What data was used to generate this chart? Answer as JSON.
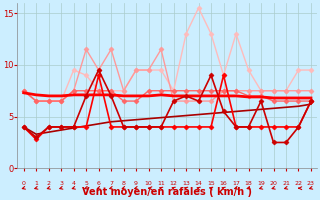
{
  "bg_color": "#cceeff",
  "grid_color": "#aacccc",
  "xlabel": "Vent moyen/en rafales ( km/h )",
  "xlabel_color": "#cc0000",
  "xlabel_fontsize": 7,
  "ytick_color": "#cc0000",
  "xtick_color": "#cc0000",
  "ylim": [
    0,
    16
  ],
  "yticks": [
    0,
    5,
    10,
    15
  ],
  "xticks": [
    0,
    1,
    2,
    3,
    4,
    5,
    6,
    7,
    8,
    9,
    10,
    11,
    12,
    13,
    14,
    15,
    16,
    17,
    18,
    19,
    20,
    21,
    22,
    23
  ],
  "lines": [
    {
      "y": [
        7.5,
        6.5,
        6.5,
        6.5,
        9.5,
        9.0,
        7.5,
        7.5,
        7.5,
        9.5,
        9.5,
        9.5,
        7.5,
        13.0,
        15.5,
        13.0,
        9.0,
        13.0,
        9.5,
        7.5,
        7.5,
        7.5,
        9.5,
        9.5
      ],
      "color": "#ffbbbb",
      "lw": 1.0,
      "marker": "D",
      "ms": 2.5,
      "alpha": 1.0
    },
    {
      "y": [
        7.5,
        6.5,
        6.5,
        6.5,
        7.5,
        11.5,
        9.5,
        11.5,
        7.5,
        9.5,
        9.5,
        11.5,
        6.5,
        6.5,
        6.5,
        6.5,
        7.5,
        7.5,
        7.5,
        7.5,
        7.5,
        7.5,
        7.5,
        7.5
      ],
      "color": "#ff9999",
      "lw": 1.0,
      "marker": "D",
      "ms": 2.5,
      "alpha": 1.0
    },
    {
      "y": [
        7.5,
        6.5,
        6.5,
        6.5,
        7.5,
        7.5,
        7.5,
        7.5,
        6.5,
        6.5,
        7.5,
        7.5,
        7.5,
        7.5,
        7.5,
        7.5,
        7.5,
        7.5,
        7.0,
        7.0,
        6.5,
        6.5,
        6.5,
        6.5
      ],
      "color": "#ff6666",
      "lw": 1.0,
      "marker": "D",
      "ms": 2.5,
      "alpha": 1.0
    },
    {
      "y": [
        7.3,
        7.1,
        7.0,
        7.0,
        7.1,
        7.1,
        7.1,
        7.1,
        7.0,
        7.0,
        7.0,
        7.1,
        7.0,
        7.0,
        7.0,
        7.0,
        7.0,
        7.0,
        6.9,
        6.9,
        6.8,
        6.8,
        6.8,
        6.8
      ],
      "color": "#ff0000",
      "lw": 2.0,
      "marker": null,
      "ms": 0,
      "alpha": 1.0
    },
    {
      "y": [
        4.0,
        3.3,
        3.5,
        3.7,
        3.9,
        4.1,
        4.3,
        4.5,
        4.6,
        4.7,
        4.8,
        4.9,
        5.0,
        5.1,
        5.2,
        5.3,
        5.4,
        5.5,
        5.6,
        5.7,
        5.8,
        5.9,
        6.0,
        6.2
      ],
      "color": "#aa0000",
      "lw": 1.2,
      "marker": null,
      "ms": 0,
      "alpha": 1.0
    },
    {
      "y": [
        4.0,
        2.8,
        4.0,
        4.0,
        4.0,
        4.0,
        9.0,
        4.0,
        4.0,
        4.0,
        4.0,
        4.0,
        4.0,
        4.0,
        4.0,
        4.0,
        9.0,
        4.0,
        4.0,
        4.0,
        4.0,
        4.0,
        4.0,
        6.5
      ],
      "color": "#ff0000",
      "lw": 1.2,
      "marker": "D",
      "ms": 2.5,
      "alpha": 1.0
    },
    {
      "y": [
        4.0,
        3.0,
        4.0,
        4.0,
        4.0,
        7.0,
        9.5,
        7.0,
        4.0,
        4.0,
        4.0,
        4.0,
        6.5,
        7.0,
        6.5,
        9.0,
        5.5,
        4.0,
        4.0,
        6.5,
        2.5,
        2.5,
        4.0,
        6.5
      ],
      "color": "#cc0000",
      "lw": 1.2,
      "marker": "D",
      "ms": 2.5,
      "alpha": 1.0
    }
  ],
  "wind_arrow_angles": [
    225,
    225,
    225,
    225,
    225,
    225,
    225,
    225,
    225,
    225,
    270,
    315,
    315,
    315,
    315,
    315,
    315,
    225,
    225,
    225,
    225,
    225,
    270,
    225
  ],
  "wind_arrow_color": "#cc0000"
}
